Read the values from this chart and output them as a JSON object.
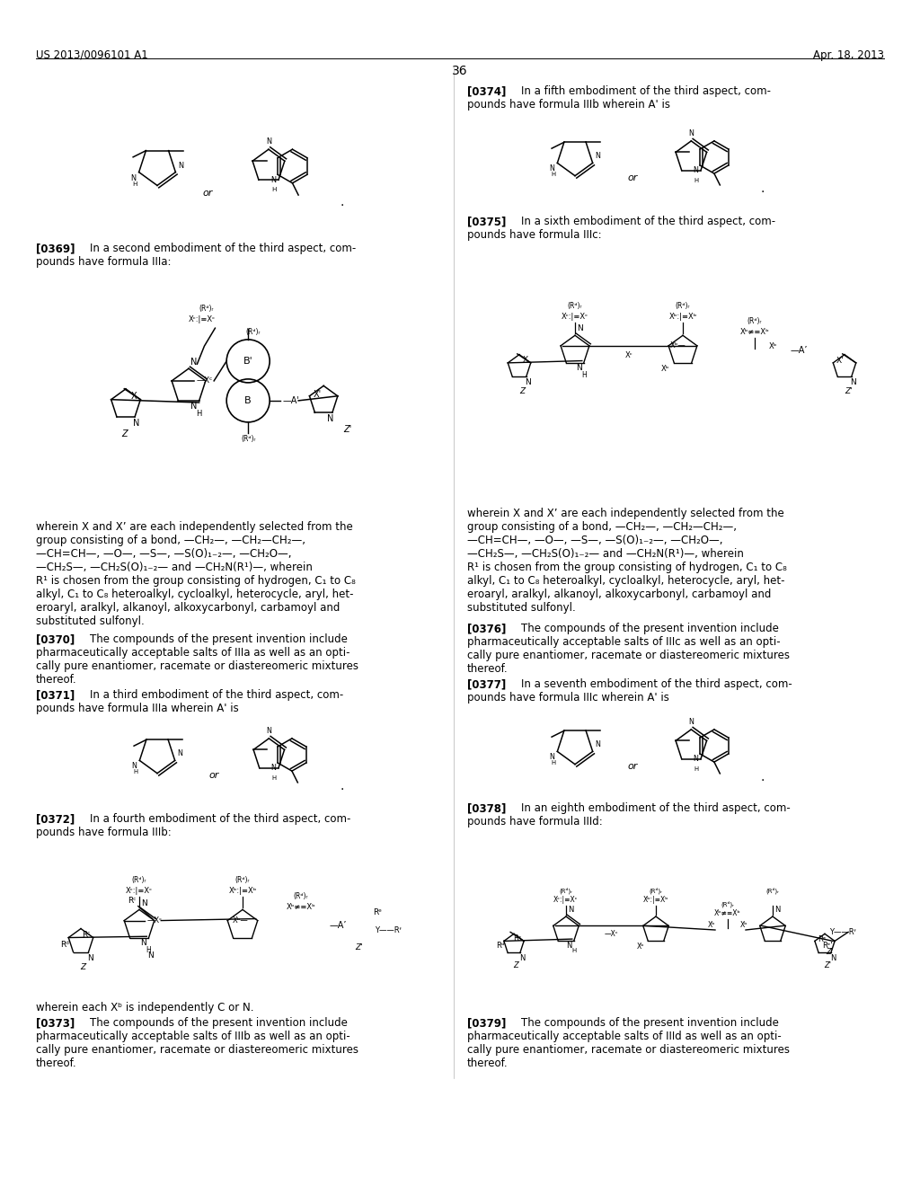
{
  "bg": "#ffffff",
  "header_left": "US 2013/0096101 A1",
  "header_right": "Apr. 18, 2013",
  "page_num": "36",
  "body_fs": 8.5,
  "tag_fs": 8.5,
  "header_fs": 8.5,
  "pagenum_fs": 10
}
